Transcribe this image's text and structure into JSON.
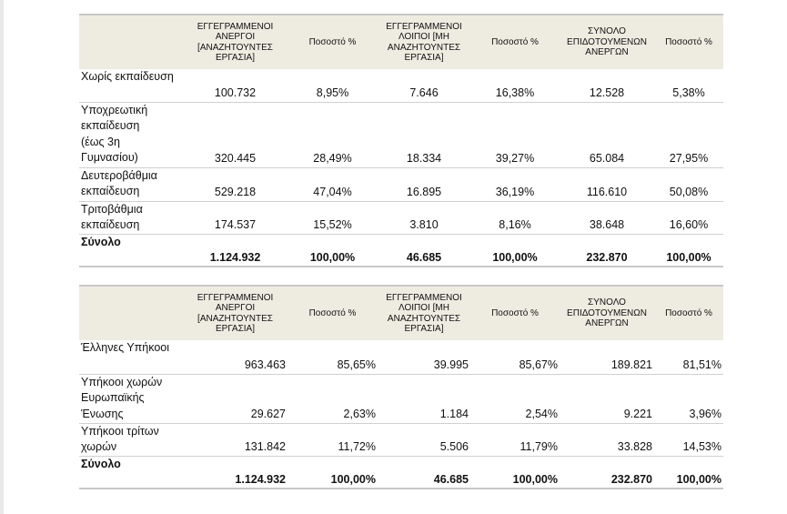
{
  "table1": {
    "headers": [
      "",
      "ΕΓΓΕΓΡΑΜΜΕΝΟΙ ΑΝΕΡΓΟΙ [ΑΝΑΖΗΤΟΥΝΤΕΣ ΕΡΓΑΣΙΑ]",
      "Ποσοστό %",
      "ΕΓΓΕΓΡΑΜΜΕΝΟΙ ΛΟΙΠΟΙ [ΜΗ ΑΝΑΖΗΤΟΥΝΤΕΣ ΕΡΓΑΣΙΑ]",
      "Ποσοστό %",
      "ΣΥΝΟΛΟ ΕΠΙΔΟΤΟΥΜΕΝΩΝ ΑΝΕΡΓΩΝ",
      "Ποσοστό %"
    ],
    "rows": [
      {
        "label": [
          "Χωρίς εκπαίδευση"
        ],
        "values": [
          "100.732",
          "8,95%",
          "7.646",
          "16,38%",
          "12.528",
          "5,38%"
        ]
      },
      {
        "label": [
          "Υποχρεωτική",
          "εκπαίδευση",
          "(έως 3η",
          "Γυμνασίου)"
        ],
        "values": [
          "320.445",
          "28,49%",
          "18.334",
          "39,27%",
          "65.084",
          "27,95%"
        ]
      },
      {
        "label": [
          "Δευτεροβάθμια",
          "εκπαίδευση"
        ],
        "values": [
          "529.218",
          "47,04%",
          "16.895",
          "36,19%",
          "116.610",
          "50,08%"
        ]
      },
      {
        "label": [
          "Τριτοβάθμια",
          "εκπαίδευση"
        ],
        "values": [
          "174.537",
          "15,52%",
          "3.810",
          "8,16%",
          "38.648",
          "16,60%"
        ]
      }
    ],
    "total": {
      "label": "Σύνολο",
      "values": [
        "1.124.932",
        "100,00%",
        "46.685",
        "100,00%",
        "232.870",
        "100,00%"
      ]
    }
  },
  "table2": {
    "headers": [
      "",
      "ΕΓΓΕΓΡΑΜΜΕΝΟΙ ΑΝΕΡΓΟΙ [ΑΝΑΖΗΤΟΥΝΤΕΣ ΕΡΓΑΣΙΑ]",
      "Ποσοστό %",
      "ΕΓΓΕΓΡΑΜΜΕΝΟΙ ΛΟΙΠΟΙ [ΜΗ ΑΝΑΖΗΤΟΥΝΤΕΣ ΕΡΓΑΣΙΑ]",
      "Ποσοστό %",
      "ΣΥΝΟΛΟ ΕΠΙΔΟΤΟΥΜΕΝΩΝ ΑΝΕΡΓΩΝ",
      "Ποσοστό %"
    ],
    "rows": [
      {
        "label": [
          "Έλληνες Υπήκοοι"
        ],
        "values": [
          "963.463",
          "85,65%",
          "39.995",
          "85,67%",
          "189.821",
          "81,51%"
        ]
      },
      {
        "label": [
          "Υπήκοοι χωρών",
          "Ευρωπαϊκής",
          "Ένωσης"
        ],
        "values": [
          "29.627",
          "2,63%",
          "1.184",
          "2,54%",
          "9.221",
          "3,96%"
        ]
      },
      {
        "label": [
          "Υπήκοοι τρίτων",
          "χωρών"
        ],
        "values": [
          "131.842",
          "11,72%",
          "5.506",
          "11,79%",
          "33.828",
          "14,53%"
        ]
      }
    ],
    "total": {
      "label": "Σύνολο",
      "values": [
        "1.124.932",
        "100,00%",
        "46.685",
        "100,00%",
        "232.870",
        "100,00%"
      ]
    }
  }
}
